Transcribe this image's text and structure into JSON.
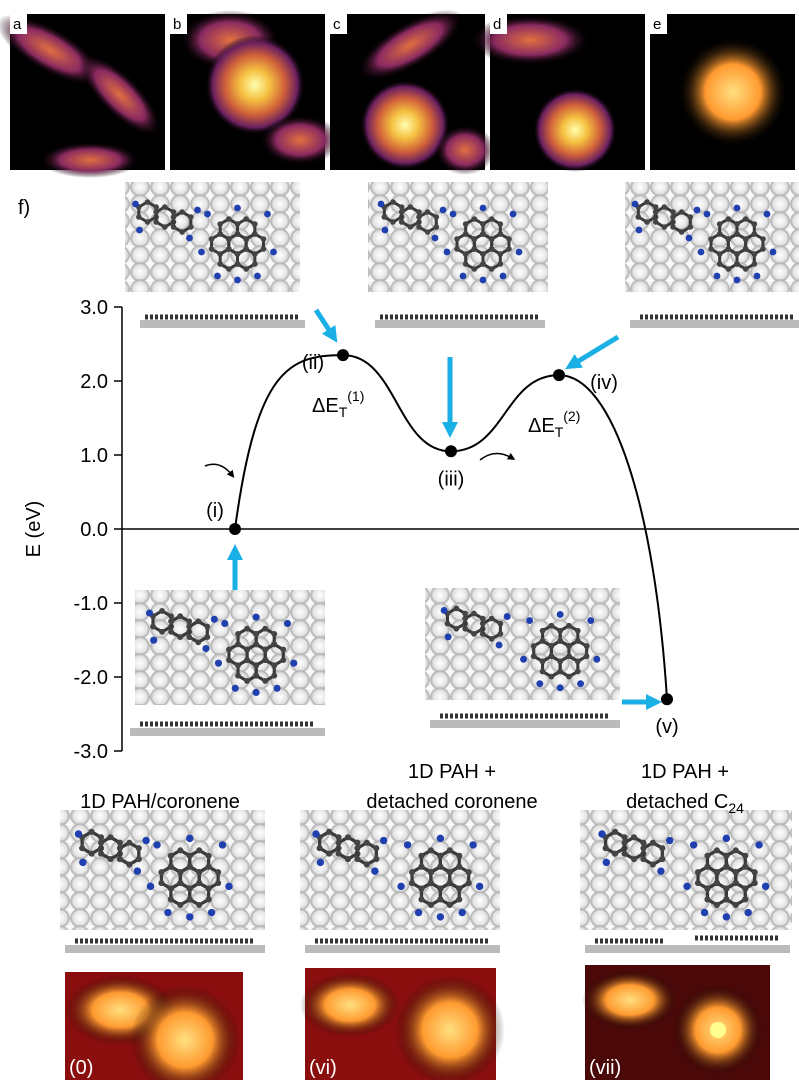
{
  "panels": {
    "labels": [
      "a",
      "b",
      "c",
      "d",
      "e"
    ],
    "f_label": "f)"
  },
  "chart_data": {
    "type": "line",
    "y_label": "E (eV)",
    "categories": [
      "(i)",
      "(ii)",
      "(iii)",
      "(iv)",
      "(v)"
    ],
    "values": [
      0.0,
      2.35,
      1.05,
      2.08,
      -2.3
    ],
    "color": "#000000",
    "ylim": [
      -3,
      3
    ],
    "yticks": [
      {
        "value": 3,
        "label": "3.0"
      },
      {
        "value": 2,
        "label": "2.0"
      },
      {
        "value": 1,
        "label": "1.0"
      },
      {
        "value": 0,
        "label": "0.0"
      },
      {
        "value": -1,
        "label": "-1.0"
      },
      {
        "value": -2,
        "label": "-2.0"
      },
      {
        "value": -3,
        "label": "-3.0"
      }
    ],
    "annotations": [
      {
        "main": "ΔE",
        "sub": "T",
        "sup": "(1)"
      },
      {
        "main": "ΔE",
        "sub": "T",
        "sup": "(2)"
      }
    ]
  },
  "structures": {
    "captions": [
      {
        "line1": "1D PAH/coronene"
      },
      {
        "line1": "1D PAH +",
        "line2": "detached coronene"
      },
      {
        "line1": "1D PAH +",
        "line2": "detached C",
        "sub": "24"
      }
    ],
    "stm_labels": [
      "(0)",
      "(vi)",
      "(vii)"
    ]
  }
}
